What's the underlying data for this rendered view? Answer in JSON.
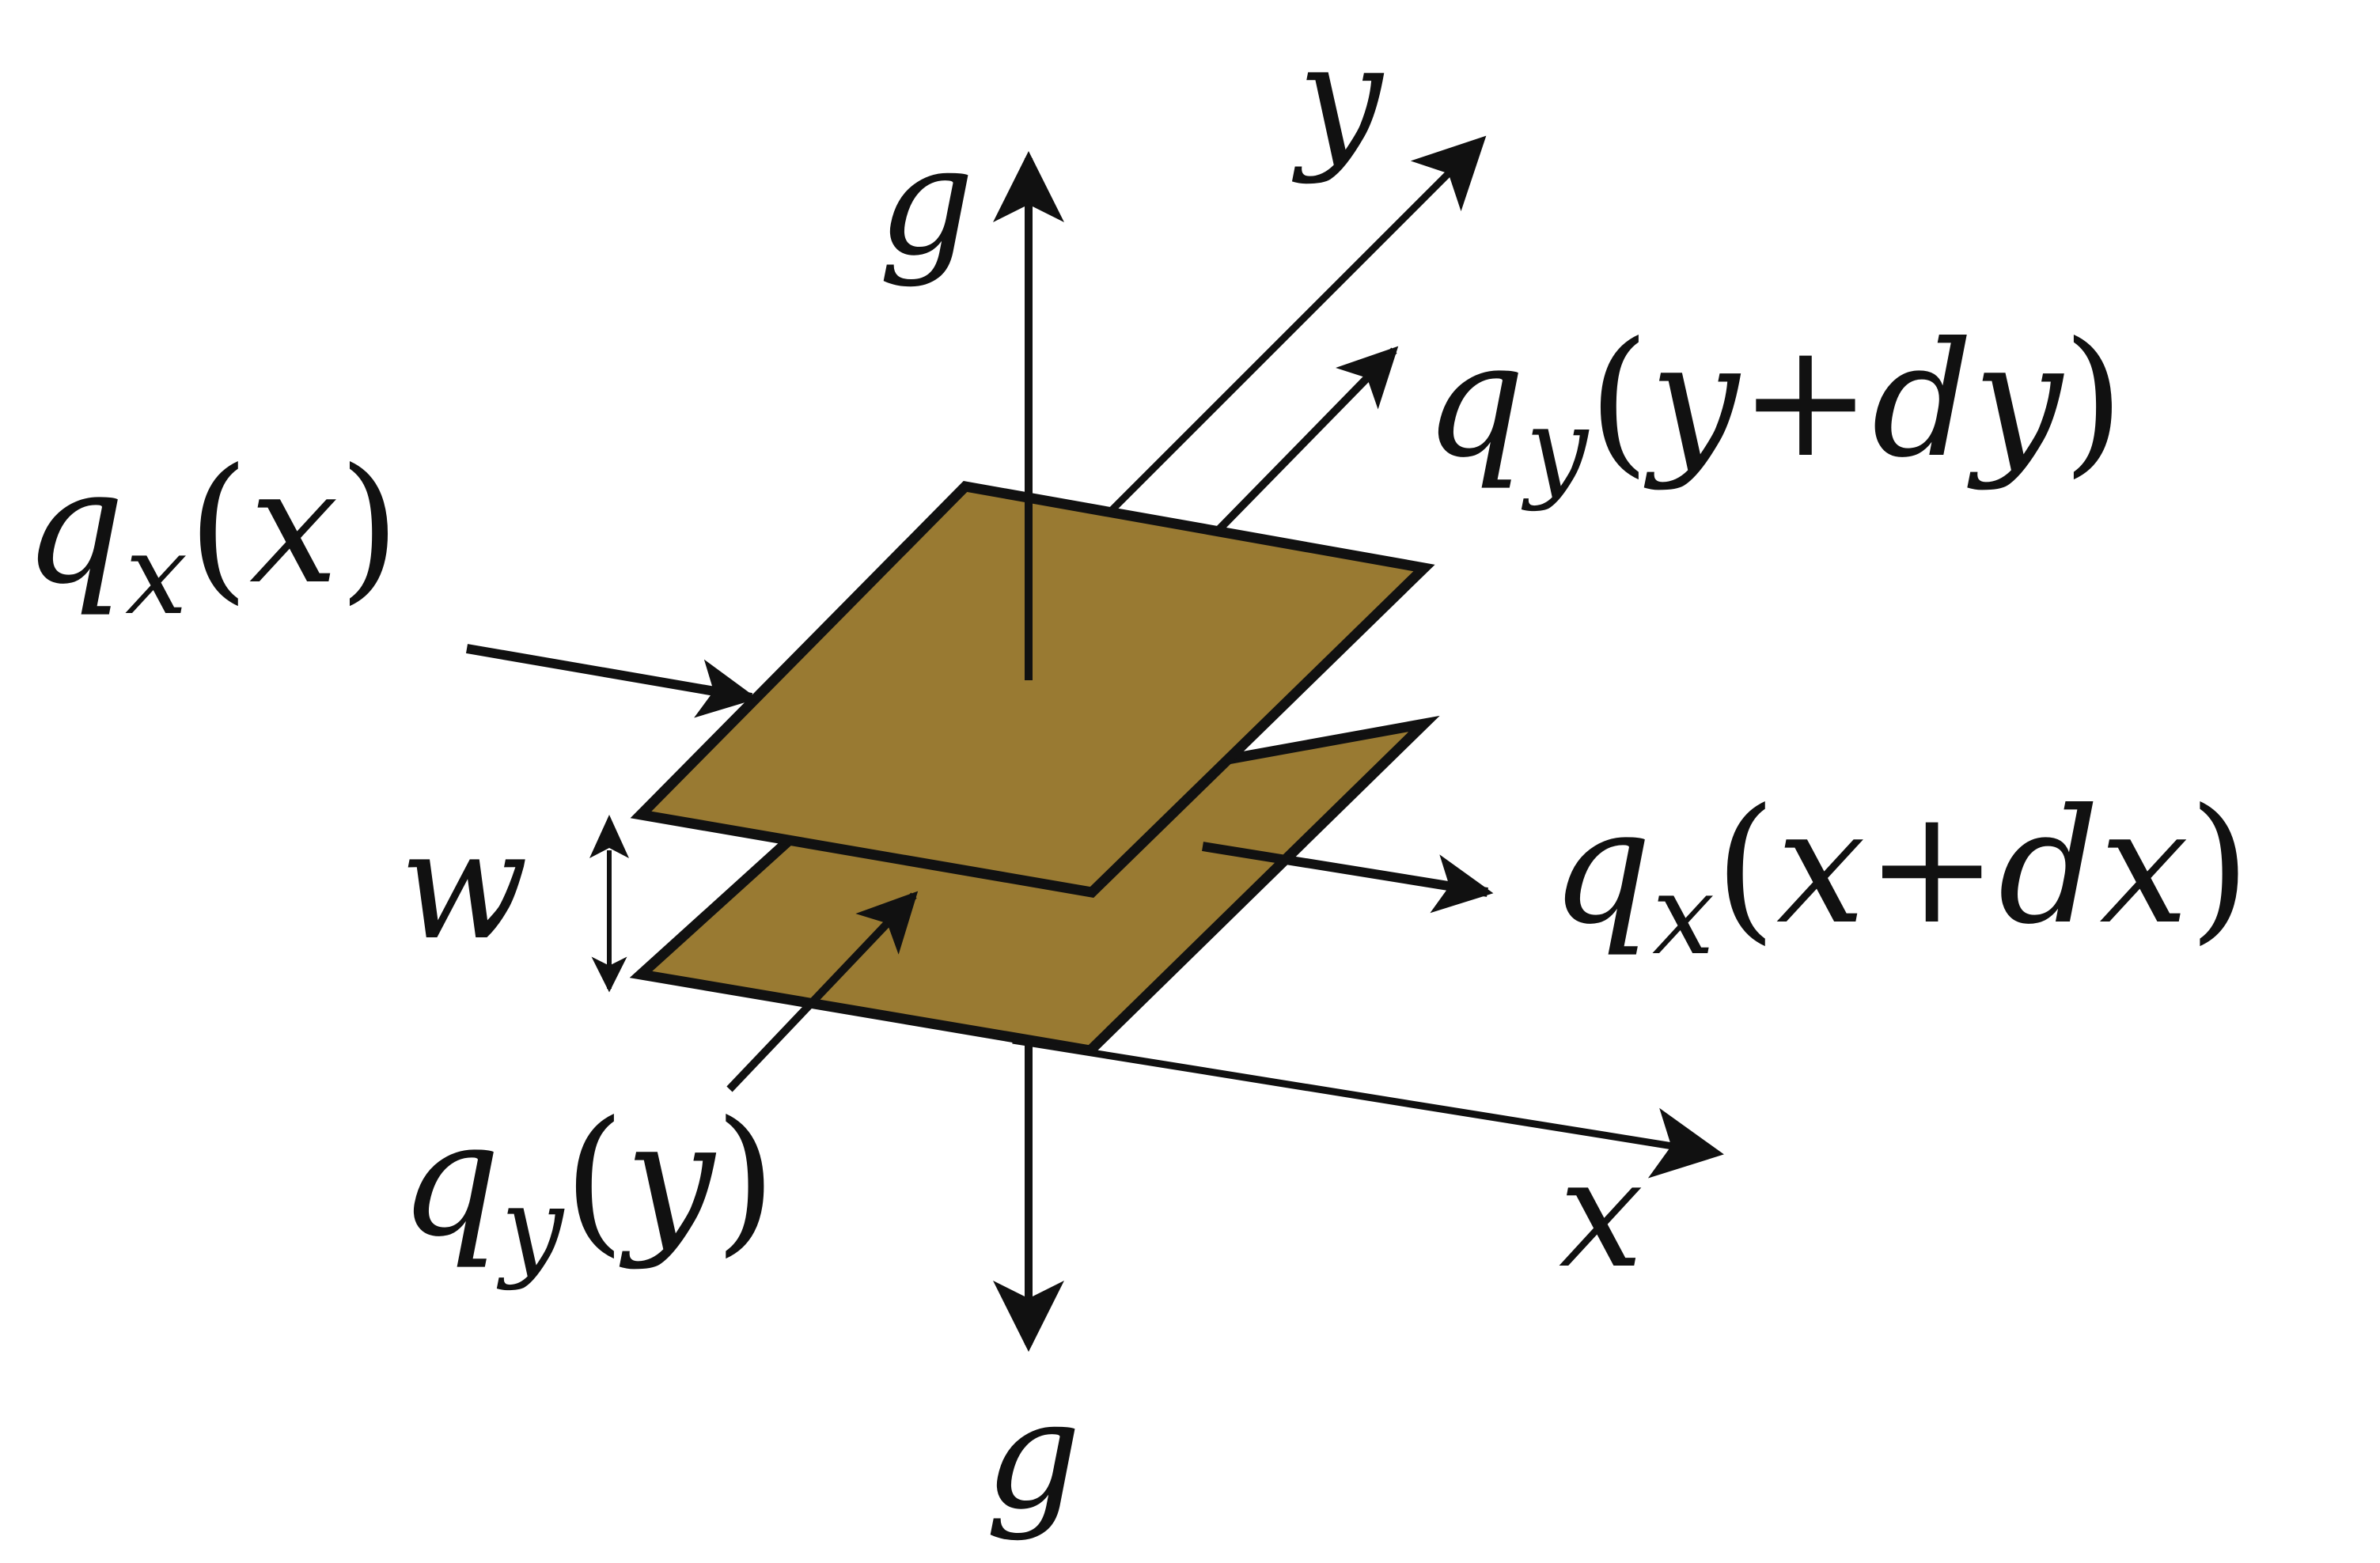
{
  "colors": {
    "plate_fill": "#997a32",
    "stroke": "#111111",
    "background": "#ffffff"
  },
  "labels": {
    "g_top": "g",
    "g_bottom": "g",
    "y_axis": "y",
    "x_axis": "x",
    "w": "w",
    "qx_in": {
      "q": "q",
      "sub": "x",
      "open": "(",
      "arg": "x",
      "close": ")"
    },
    "qy_out": {
      "q": "q",
      "sub": "y",
      "open": "(",
      "arg": "y",
      "plus": "+",
      "d": "dy",
      "close": ")"
    },
    "qx_out": {
      "q": "q",
      "sub": "x",
      "open": "(",
      "arg": "x",
      "plus": "+",
      "d": "dx",
      "close": ")"
    },
    "qy_in": {
      "q": "q",
      "sub": "y",
      "open": "(",
      "arg": "y",
      "close": ")"
    }
  }
}
